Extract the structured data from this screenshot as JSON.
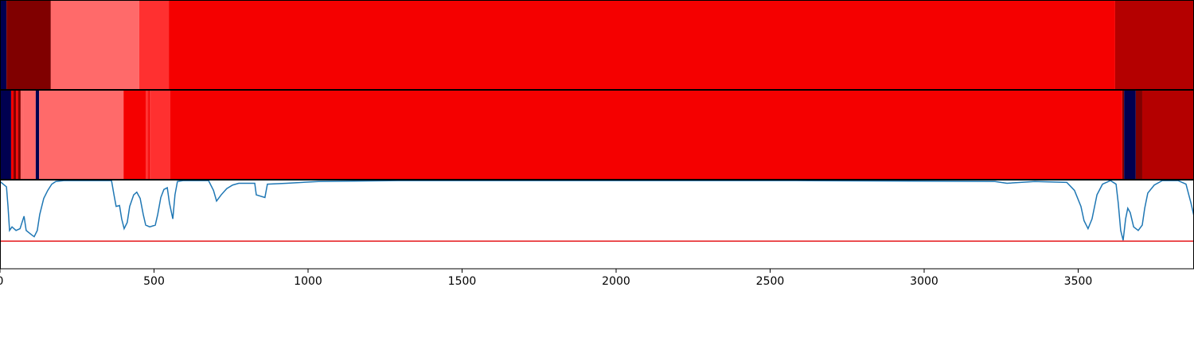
{
  "chart_data": [
    {
      "type": "segments",
      "xlim": [
        0,
        3876
      ],
      "edges": [
        0,
        21,
        165,
        452,
        548,
        3620,
        3876
      ],
      "colors": [
        "#000050",
        "#800000",
        "#ff6a6a",
        "#ff3030",
        "#f50000",
        "#b40000"
      ]
    },
    {
      "type": "segments",
      "xlim": [
        0,
        3876
      ],
      "edges": [
        0,
        36,
        44,
        52,
        59,
        67,
        75,
        116,
        127,
        401,
        473,
        481,
        486,
        491,
        553,
        3643,
        3649,
        3687,
        3708,
        3876
      ],
      "colors": [
        "#000050",
        "#f50000",
        "#800000",
        "#f50000",
        "#800000",
        "#ff6a6a",
        "#ff6a6a",
        "#000050",
        "#ff6a6a",
        "#f50000",
        "#ff3030",
        "#f50000",
        "#ff3030",
        "#ff3030",
        "#f50000",
        "#800000",
        "#000050",
        "#800000",
        "#b40000"
      ]
    },
    {
      "type": "line",
      "xlim": [
        0,
        3876
      ],
      "ylim": [
        0,
        1
      ],
      "xticks": [
        0,
        500,
        1000,
        1500,
        2000,
        2500,
        3000,
        3500
      ],
      "threshold": {
        "value": 0.31,
        "color": "#e41a1c"
      },
      "x": [
        0,
        21,
        26,
        31,
        39,
        52,
        65,
        78,
        85,
        103,
        111,
        121,
        129,
        142,
        155,
        168,
        181,
        207,
        362,
        370,
        377,
        388,
        395,
        403,
        413,
        421,
        434,
        444,
        455,
        465,
        473,
        486,
        504,
        512,
        522,
        532,
        543,
        550,
        561,
        568,
        576,
        594,
        677,
        693,
        703,
        718,
        736,
        755,
        775,
        827,
        832,
        860,
        868,
        930,
        1034,
        1292,
        2584,
        3230,
        3269,
        3359,
        3463,
        3488,
        3509,
        3519,
        3532,
        3545,
        3561,
        3579,
        3605,
        3623,
        3630,
        3638,
        3646,
        3654,
        3661,
        3669,
        3680,
        3695,
        3708,
        3716,
        3726,
        3747,
        3773,
        3824,
        3850,
        3866,
        3876
      ],
      "series": [
        {
          "color": "#1f77b4",
          "values": [
            0.98,
            0.92,
            0.7,
            0.43,
            0.47,
            0.43,
            0.45,
            0.59,
            0.43,
            0.38,
            0.36,
            0.43,
            0.61,
            0.79,
            0.88,
            0.95,
            0.98,
            0.99,
            0.99,
            0.83,
            0.7,
            0.71,
            0.56,
            0.45,
            0.52,
            0.7,
            0.83,
            0.86,
            0.79,
            0.61,
            0.49,
            0.47,
            0.49,
            0.61,
            0.8,
            0.89,
            0.91,
            0.74,
            0.56,
            0.83,
            0.98,
            0.99,
            0.99,
            0.88,
            0.76,
            0.83,
            0.9,
            0.94,
            0.96,
            0.96,
            0.83,
            0.8,
            0.95,
            0.96,
            0.98,
            0.99,
            0.99,
            0.98,
            0.96,
            0.98,
            0.97,
            0.88,
            0.7,
            0.54,
            0.45,
            0.56,
            0.83,
            0.95,
            0.99,
            0.95,
            0.74,
            0.43,
            0.32,
            0.56,
            0.68,
            0.63,
            0.47,
            0.43,
            0.49,
            0.68,
            0.85,
            0.94,
            0.99,
            0.99,
            0.95,
            0.74,
            0.59
          ]
        }
      ]
    }
  ]
}
